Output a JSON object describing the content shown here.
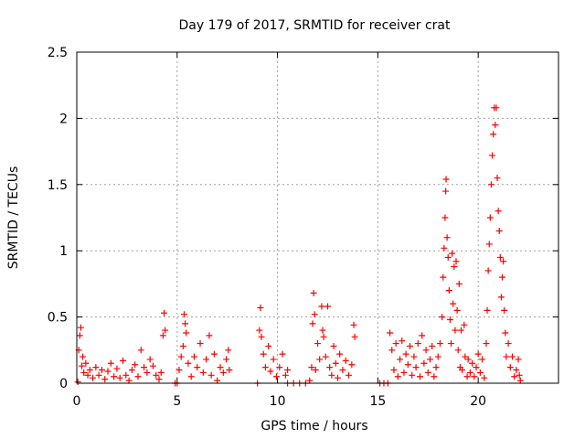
{
  "chart_data": {
    "type": "scatter",
    "title": "Day 179 of 2017, SRMTID for receiver crat",
    "xlabel": "GPS time / hours",
    "ylabel": "SRMTID / TECUs",
    "xlim": [
      0,
      24
    ],
    "ylim": [
      0,
      2.5
    ],
    "xticks": [
      0,
      5,
      10,
      15,
      20
    ],
    "xtick_labels": [
      "0",
      "5",
      "10",
      "15",
      "20"
    ],
    "yticks": [
      0,
      0.5,
      1,
      1.5,
      2,
      2.5
    ],
    "ytick_labels": [
      "0",
      "0.5",
      "1",
      "1.5",
      "2",
      "2.5"
    ],
    "grid": true,
    "marker": "+",
    "marker_color": "#ff0000",
    "series": [
      {
        "name": "SRMTID",
        "points": [
          [
            0.05,
            0.01
          ],
          [
            0.1,
            0.25
          ],
          [
            0.15,
            0.36
          ],
          [
            0.2,
            0.42
          ],
          [
            0.25,
            0.13
          ],
          [
            0.3,
            0.2
          ],
          [
            0.35,
            0.08
          ],
          [
            0.45,
            0.15
          ],
          [
            0.55,
            0.06
          ],
          [
            0.65,
            0.1
          ],
          [
            0.8,
            0.04
          ],
          [
            0.95,
            0.12
          ],
          [
            1.1,
            0.06
          ],
          [
            1.25,
            0.1
          ],
          [
            1.4,
            0.03
          ],
          [
            1.55,
            0.09
          ],
          [
            1.7,
            0.15
          ],
          [
            1.85,
            0.05
          ],
          [
            2.0,
            0.11
          ],
          [
            2.15,
            0.04
          ],
          [
            2.3,
            0.17
          ],
          [
            2.45,
            0.06
          ],
          [
            2.6,
            0.02
          ],
          [
            2.75,
            0.1
          ],
          [
            2.9,
            0.14
          ],
          [
            3.05,
            0.05
          ],
          [
            3.2,
            0.25
          ],
          [
            3.35,
            0.12
          ],
          [
            3.5,
            0.08
          ],
          [
            3.65,
            0.18
          ],
          [
            3.8,
            0.13
          ],
          [
            3.95,
            0.06
          ],
          [
            4.1,
            0.03
          ],
          [
            4.2,
            0.08
          ],
          [
            4.3,
            0.36
          ],
          [
            4.35,
            0.53
          ],
          [
            4.4,
            0.4
          ],
          [
            4.9,
            0.0
          ],
          [
            5.0,
            0.0
          ],
          [
            5.1,
            0.1
          ],
          [
            5.2,
            0.2
          ],
          [
            5.3,
            0.28
          ],
          [
            5.35,
            0.52
          ],
          [
            5.4,
            0.45
          ],
          [
            5.45,
            0.38
          ],
          [
            5.55,
            0.15
          ],
          [
            5.7,
            0.05
          ],
          [
            5.85,
            0.2
          ],
          [
            6.0,
            0.12
          ],
          [
            6.15,
            0.3
          ],
          [
            6.3,
            0.08
          ],
          [
            6.45,
            0.18
          ],
          [
            6.6,
            0.36
          ],
          [
            6.7,
            0.06
          ],
          [
            6.85,
            0.22
          ],
          [
            7.0,
            0.02
          ],
          [
            7.15,
            0.12
          ],
          [
            7.3,
            0.08
          ],
          [
            7.45,
            0.18
          ],
          [
            7.55,
            0.25
          ],
          [
            7.6,
            0.1
          ],
          [
            9.0,
            0.0
          ],
          [
            9.1,
            0.4
          ],
          [
            9.15,
            0.57
          ],
          [
            9.2,
            0.35
          ],
          [
            9.3,
            0.22
          ],
          [
            9.4,
            0.12
          ],
          [
            9.55,
            0.28
          ],
          [
            9.65,
            0.09
          ],
          [
            9.8,
            0.18
          ],
          [
            9.95,
            0.05
          ],
          [
            10.1,
            0.12
          ],
          [
            10.25,
            0.22
          ],
          [
            10.4,
            0.06
          ],
          [
            10.5,
            0.1
          ],
          [
            10.5,
            0.0
          ],
          [
            10.8,
            0.0
          ],
          [
            11.1,
            0.0
          ],
          [
            11.4,
            0.0
          ],
          [
            11.6,
            0.02
          ],
          [
            11.7,
            0.12
          ],
          [
            11.75,
            0.45
          ],
          [
            11.8,
            0.68
          ],
          [
            11.85,
            0.52
          ],
          [
            11.9,
            0.1
          ],
          [
            12.0,
            0.3
          ],
          [
            12.1,
            0.18
          ],
          [
            12.2,
            0.58
          ],
          [
            12.25,
            0.4
          ],
          [
            12.3,
            0.35
          ],
          [
            12.4,
            0.2
          ],
          [
            12.5,
            0.58
          ],
          [
            12.6,
            0.12
          ],
          [
            12.7,
            0.06
          ],
          [
            12.8,
            0.28
          ],
          [
            12.9,
            0.15
          ],
          [
            13.0,
            0.04
          ],
          [
            13.1,
            0.22
          ],
          [
            13.25,
            0.1
          ],
          [
            13.4,
            0.17
          ],
          [
            13.55,
            0.06
          ],
          [
            13.7,
            0.14
          ],
          [
            13.8,
            0.44
          ],
          [
            13.85,
            0.35
          ],
          [
            15.1,
            0.0
          ],
          [
            15.3,
            0.0
          ],
          [
            15.5,
            0.0
          ],
          [
            15.6,
            0.38
          ],
          [
            15.7,
            0.25
          ],
          [
            15.8,
            0.1
          ],
          [
            15.9,
            0.3
          ],
          [
            16.0,
            0.05
          ],
          [
            16.1,
            0.18
          ],
          [
            16.2,
            0.32
          ],
          [
            16.3,
            0.08
          ],
          [
            16.4,
            0.22
          ],
          [
            16.5,
            0.14
          ],
          [
            16.6,
            0.28
          ],
          [
            16.7,
            0.06
          ],
          [
            16.8,
            0.2
          ],
          [
            16.9,
            0.12
          ],
          [
            17.0,
            0.3
          ],
          [
            17.1,
            0.05
          ],
          [
            17.2,
            0.36
          ],
          [
            17.3,
            0.15
          ],
          [
            17.4,
            0.25
          ],
          [
            17.5,
            0.08
          ],
          [
            17.6,
            0.18
          ],
          [
            17.7,
            0.28
          ],
          [
            17.8,
            0.05
          ],
          [
            17.9,
            0.12
          ],
          [
            18.0,
            0.2
          ],
          [
            18.1,
            0.3
          ],
          [
            18.2,
            0.5
          ],
          [
            18.25,
            0.8
          ],
          [
            18.3,
            1.02
          ],
          [
            18.35,
            1.25
          ],
          [
            18.38,
            1.45
          ],
          [
            18.4,
            1.54
          ],
          [
            18.45,
            1.1
          ],
          [
            18.5,
            0.95
          ],
          [
            18.55,
            0.7
          ],
          [
            18.6,
            0.48
          ],
          [
            18.65,
            0.3
          ],
          [
            18.7,
            0.98
          ],
          [
            18.75,
            0.6
          ],
          [
            18.8,
            0.88
          ],
          [
            18.85,
            0.4
          ],
          [
            18.9,
            0.92
          ],
          [
            18.95,
            0.55
          ],
          [
            19.0,
            0.25
          ],
          [
            19.05,
            0.75
          ],
          [
            19.1,
            0.12
          ],
          [
            19.15,
            0.4
          ],
          [
            19.2,
            0.1
          ],
          [
            19.3,
            0.44
          ],
          [
            19.35,
            0.2
          ],
          [
            19.45,
            0.05
          ],
          [
            19.5,
            0.18
          ],
          [
            19.6,
            0.08
          ],
          [
            19.7,
            0.15
          ],
          [
            19.8,
            0.05
          ],
          [
            19.9,
            0.12
          ],
          [
            20.0,
            0.22
          ],
          [
            20.1,
            0.08
          ],
          [
            20.2,
            0.18
          ],
          [
            20.3,
            0.04
          ],
          [
            20.4,
            0.3
          ],
          [
            20.45,
            0.55
          ],
          [
            20.5,
            0.85
          ],
          [
            20.55,
            1.05
          ],
          [
            20.6,
            1.25
          ],
          [
            20.65,
            1.5
          ],
          [
            20.7,
            1.72
          ],
          [
            20.75,
            1.88
          ],
          [
            20.8,
            2.08
          ],
          [
            20.85,
            1.95
          ],
          [
            20.9,
            2.08
          ],
          [
            20.95,
            1.55
          ],
          [
            21.0,
            1.3
          ],
          [
            21.05,
            1.15
          ],
          [
            21.1,
            0.95
          ],
          [
            21.15,
            0.65
          ],
          [
            21.2,
            0.8
          ],
          [
            21.25,
            0.92
          ],
          [
            21.3,
            0.55
          ],
          [
            21.35,
            0.38
          ],
          [
            21.4,
            0.2
          ],
          [
            21.5,
            0.3
          ],
          [
            21.6,
            0.12
          ],
          [
            21.7,
            0.2
          ],
          [
            21.8,
            0.05
          ],
          [
            21.9,
            0.1
          ],
          [
            22.0,
            0.18
          ],
          [
            22.05,
            0.06
          ],
          [
            22.1,
            0.02
          ]
        ]
      }
    ]
  }
}
